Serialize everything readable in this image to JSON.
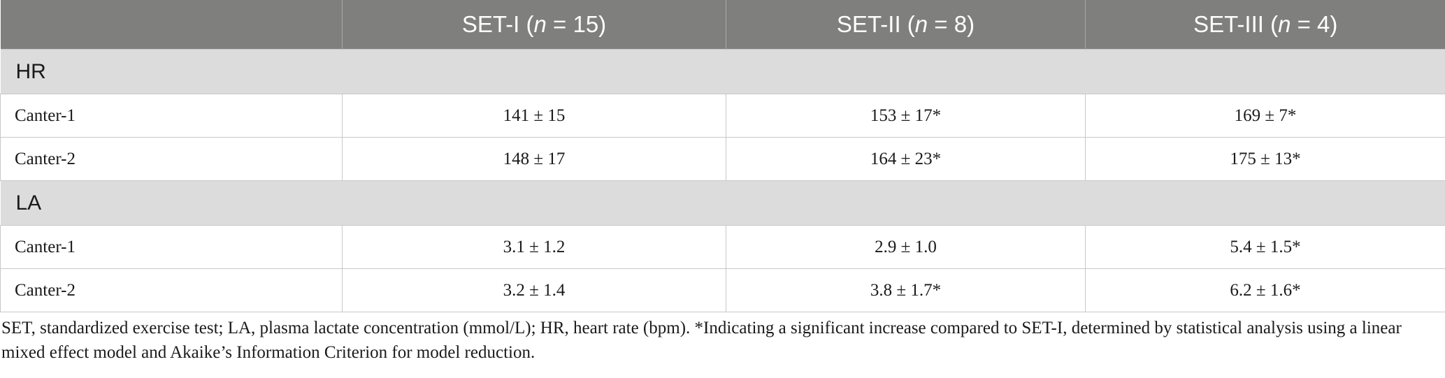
{
  "table": {
    "columns": [
      {
        "prefix": "SET-I (",
        "n_var": "n",
        "suffix": " = 15)"
      },
      {
        "prefix": "SET-II (",
        "n_var": "n",
        "suffix": " = 8)"
      },
      {
        "prefix": "SET-III (",
        "n_var": "n",
        "suffix": " = 4)"
      }
    ],
    "sections": [
      {
        "label": "HR",
        "rows": [
          {
            "label": "Canter-1",
            "values": [
              "141 ± 15",
              "153 ± 17*",
              "169 ± 7*"
            ]
          },
          {
            "label": "Canter-2",
            "values": [
              "148 ± 17",
              "164 ± 23*",
              "175 ± 13*"
            ]
          }
        ]
      },
      {
        "label": "LA",
        "rows": [
          {
            "label": "Canter-1",
            "values": [
              "3.1 ± 1.2",
              "2.9 ± 1.0",
              "5.4 ± 1.5*"
            ]
          },
          {
            "label": "Canter-2",
            "values": [
              "3.2 ± 1.4",
              "3.8 ± 1.7*",
              "6.2 ± 1.6*"
            ]
          }
        ]
      }
    ]
  },
  "footnote": "SET, standardized exercise test; LA, plasma lactate concentration (mmol/L); HR, heart rate (bpm). *Indicating a significant increase compared to SET-I, determined by statistical analysis using a linear mixed effect model and Akaike’s Information Criterion for model reduction."
}
